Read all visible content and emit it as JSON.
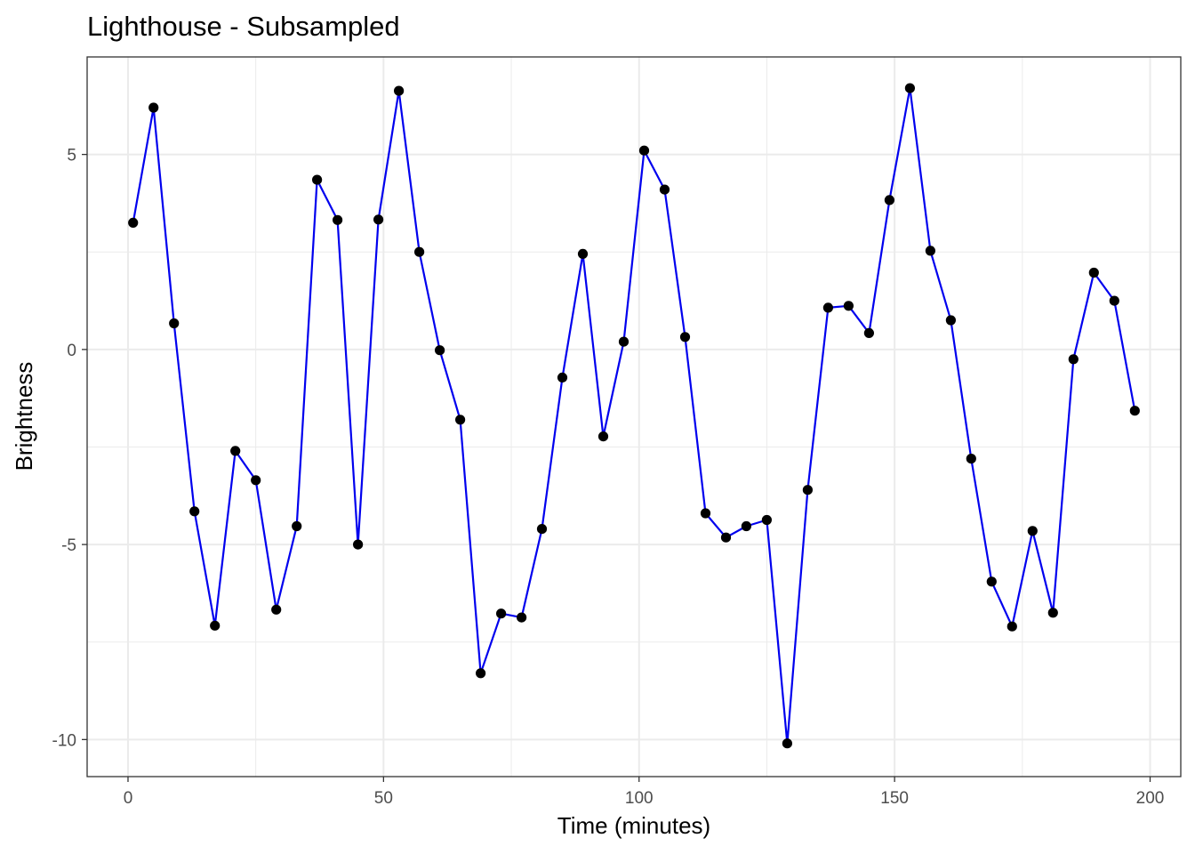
{
  "chart_data": {
    "type": "line",
    "title": "Lighthouse - Subsampled",
    "xlabel": "Time (minutes)",
    "ylabel": "Brightness",
    "xlim": [
      -8,
      206
    ],
    "ylim": [
      -10.95,
      7.5
    ],
    "x_ticks": [
      0,
      50,
      100,
      150,
      200
    ],
    "x_tick_labels": [
      "0",
      "50",
      "100",
      "150",
      "200"
    ],
    "y_ticks": [
      -10,
      -5,
      0,
      5
    ],
    "y_tick_labels": [
      "-10",
      "-5",
      "0",
      "5"
    ],
    "grid": true,
    "theme": "bw",
    "line_color": "#0000ee",
    "point_color": "#000000",
    "series": [
      {
        "x": [
          1,
          5,
          9,
          13,
          17,
          21,
          25,
          29,
          33,
          37,
          41,
          45,
          49,
          53,
          57,
          61,
          65,
          69,
          73,
          77,
          81,
          85,
          89,
          93,
          97,
          101,
          105,
          109,
          113,
          117,
          121,
          125,
          129,
          133,
          137,
          141,
          145,
          149,
          153,
          157,
          161,
          165,
          169,
          173,
          177,
          181,
          185,
          189,
          193,
          197
        ],
        "values": [
          3.25,
          6.2,
          0.67,
          -4.15,
          -7.08,
          -2.6,
          -3.35,
          -6.67,
          -4.53,
          4.35,
          3.32,
          -5.0,
          3.33,
          6.63,
          2.5,
          -0.02,
          -1.8,
          -8.3,
          -6.77,
          -6.87,
          -4.6,
          -0.72,
          2.45,
          -2.23,
          0.2,
          5.1,
          4.1,
          0.32,
          -4.2,
          -4.82,
          -4.53,
          -4.37,
          -10.1,
          -3.6,
          1.07,
          1.12,
          0.42,
          3.83,
          6.7,
          2.53,
          0.75,
          -2.8,
          -5.95,
          -7.1,
          -4.65,
          -6.75,
          -0.25,
          1.97,
          1.25,
          -1.57
        ]
      }
    ]
  }
}
